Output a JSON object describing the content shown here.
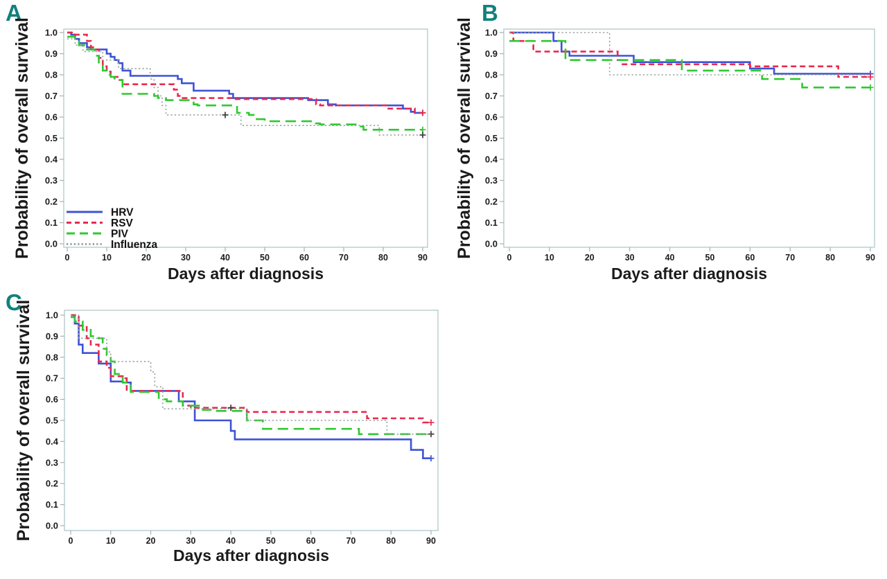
{
  "palette": {
    "panel_letter": "#11817d",
    "axis_text": "#1b1b1b",
    "box_border": "#bccfcf",
    "tick": "#9fb4b4",
    "hrv_blue": "#3d52d5",
    "rsv_red": "#e8294f",
    "piv_green": "#2fc82f",
    "influenza_gray": "#98a2a2",
    "censor_dark": "#3a3a3a"
  },
  "chart_data": [
    {
      "letter": "A",
      "type": "line",
      "subtype": "kaplan-meier-step",
      "xlabel": "Days after diagnosis",
      "ylabel": "Probability of overall survival",
      "xlim": [
        0,
        90
      ],
      "xtick_step": 10,
      "ylim": [
        0.0,
        1.0
      ],
      "ytick_step": 0.1,
      "grid": false,
      "legend_visible": true,
      "legend_position": "inside-bottom-left",
      "series": [
        {
          "name": "HRV",
          "color": "#3d52d5",
          "dash": "solid",
          "points": [
            [
              0,
              1.0
            ],
            [
              1,
              0.99
            ],
            [
              2,
              0.97
            ],
            [
              3,
              0.95
            ],
            [
              5,
              0.93
            ],
            [
              6,
              0.92
            ],
            [
              10,
              0.9
            ],
            [
              11,
              0.885
            ],
            [
              12,
              0.87
            ],
            [
              13,
              0.855
            ],
            [
              14,
              0.82
            ],
            [
              16,
              0.795
            ],
            [
              28,
              0.78
            ],
            [
              29,
              0.76
            ],
            [
              32,
              0.725
            ],
            [
              41,
              0.71
            ],
            [
              42,
              0.69
            ],
            [
              61,
              0.68
            ],
            [
              66,
              0.66
            ],
            [
              68,
              0.655
            ],
            [
              85,
              0.64
            ],
            [
              87,
              0.625
            ],
            [
              88,
              0.62
            ],
            [
              90,
              0.62
            ]
          ],
          "censors": [
            [
              90,
              0.62
            ]
          ]
        },
        {
          "name": "RSV",
          "color": "#e8294f",
          "dash": "dashed",
          "points": [
            [
              0,
              1.0
            ],
            [
              2,
              0.99
            ],
            [
              5,
              0.96
            ],
            [
              6,
              0.93
            ],
            [
              7,
              0.92
            ],
            [
              8,
              0.88
            ],
            [
              9,
              0.84
            ],
            [
              10,
              0.815
            ],
            [
              11,
              0.79
            ],
            [
              13,
              0.775
            ],
            [
              14,
              0.755
            ],
            [
              27,
              0.73
            ],
            [
              28,
              0.7
            ],
            [
              29,
              0.69
            ],
            [
              42,
              0.685
            ],
            [
              63,
              0.66
            ],
            [
              64,
              0.655
            ],
            [
              81,
              0.64
            ],
            [
              88,
              0.62
            ],
            [
              90,
              0.62
            ]
          ],
          "censors": [
            [
              90,
              0.62
            ]
          ]
        },
        {
          "name": "PIV",
          "color": "#2fc82f",
          "dash": "longdash",
          "points": [
            [
              0,
              0.98
            ],
            [
              2,
              0.96
            ],
            [
              3,
              0.94
            ],
            [
              5,
              0.92
            ],
            [
              7,
              0.89
            ],
            [
              8,
              0.85
            ],
            [
              9,
              0.82
            ],
            [
              10,
              0.8
            ],
            [
              11,
              0.79
            ],
            [
              12,
              0.775
            ],
            [
              14,
              0.71
            ],
            [
              22,
              0.7
            ],
            [
              23,
              0.69
            ],
            [
              25,
              0.68
            ],
            [
              32,
              0.66
            ],
            [
              33,
              0.655
            ],
            [
              43,
              0.62
            ],
            [
              46,
              0.61
            ],
            [
              48,
              0.59
            ],
            [
              50,
              0.58
            ],
            [
              63,
              0.57
            ],
            [
              64,
              0.565
            ],
            [
              73,
              0.555
            ],
            [
              75,
              0.54
            ],
            [
              90,
              0.54
            ]
          ],
          "censors": [
            [
              90,
              0.54
            ]
          ]
        },
        {
          "name": "Influenza",
          "color": "#98a2a2",
          "dash": "dotted",
          "points": [
            [
              0,
              0.97
            ],
            [
              2,
              0.94
            ],
            [
              4,
              0.91
            ],
            [
              9,
              0.87
            ],
            [
              13,
              0.83
            ],
            [
              21,
              0.78
            ],
            [
              22,
              0.74
            ],
            [
              23,
              0.7
            ],
            [
              24,
              0.655
            ],
            [
              25,
              0.61
            ],
            [
              44,
              0.56
            ],
            [
              79,
              0.515
            ],
            [
              90,
              0.515
            ]
          ],
          "censors": [
            [
              40,
              0.61,
              "#3a3a3a"
            ],
            [
              90,
              0.515,
              "#3a3a3a"
            ]
          ]
        }
      ]
    },
    {
      "letter": "B",
      "type": "line",
      "subtype": "kaplan-meier-step",
      "xlabel": "Days after diagnosis",
      "ylabel": "Probability of overall survival",
      "xlim": [
        0,
        90
      ],
      "xtick_step": 10,
      "ylim": [
        0.0,
        1.0
      ],
      "ytick_step": 0.1,
      "grid": false,
      "legend_visible": false,
      "series": [
        {
          "name": "HRV",
          "color": "#3d52d5",
          "dash": "solid",
          "points": [
            [
              0,
              1.0
            ],
            [
              11,
              0.96
            ],
            [
              13,
              0.91
            ],
            [
              15,
              0.89
            ],
            [
              31,
              0.86
            ],
            [
              60,
              0.83
            ],
            [
              66,
              0.805
            ],
            [
              90,
              0.805
            ]
          ],
          "censors": [
            [
              90,
              0.805
            ]
          ]
        },
        {
          "name": "RSV",
          "color": "#e8294f",
          "dash": "dashed",
          "points": [
            [
              0,
              1.0
            ],
            [
              1,
              0.96
            ],
            [
              6,
              0.91
            ],
            [
              27,
              0.87
            ],
            [
              28,
              0.85
            ],
            [
              60,
              0.84
            ],
            [
              82,
              0.79
            ],
            [
              90,
              0.79
            ]
          ],
          "censors": [
            [
              90,
              0.79
            ]
          ]
        },
        {
          "name": "PIV",
          "color": "#2fc82f",
          "dash": "longdash",
          "points": [
            [
              0,
              0.96
            ],
            [
              14,
              0.87
            ],
            [
              43,
              0.82
            ],
            [
              63,
              0.78
            ],
            [
              73,
              0.74
            ],
            [
              90,
              0.74
            ]
          ],
          "censors": [
            [
              90,
              0.74
            ]
          ]
        },
        {
          "name": "Influenza",
          "color": "#98a2a2",
          "dash": "dotted",
          "points": [
            [
              0,
              1.0
            ],
            [
              25,
              0.8
            ],
            [
              90,
              0.8
            ]
          ],
          "censors": []
        }
      ]
    },
    {
      "letter": "C",
      "type": "line",
      "subtype": "kaplan-meier-step",
      "xlabel": "Days after diagnosis",
      "ylabel": "Probability of overall survival",
      "xlim": [
        0,
        90
      ],
      "xtick_step": 10,
      "ylim": [
        0.0,
        1.0
      ],
      "ytick_step": 0.1,
      "grid": false,
      "legend_visible": false,
      "series": [
        {
          "name": "HRV",
          "color": "#3d52d5",
          "dash": "solid",
          "points": [
            [
              0,
              1.0
            ],
            [
              1,
              0.96
            ],
            [
              2,
              0.86
            ],
            [
              3,
              0.82
            ],
            [
              7,
              0.77
            ],
            [
              10,
              0.685
            ],
            [
              13,
              0.68
            ],
            [
              15,
              0.64
            ],
            [
              27,
              0.59
            ],
            [
              31,
              0.5
            ],
            [
              40,
              0.45
            ],
            [
              41,
              0.41
            ],
            [
              85,
              0.36
            ],
            [
              88,
              0.32
            ],
            [
              90,
              0.32
            ]
          ],
          "censors": [
            [
              90,
              0.32
            ]
          ]
        },
        {
          "name": "RSV",
          "color": "#e8294f",
          "dash": "dashed",
          "points": [
            [
              0,
              1.0
            ],
            [
              2,
              0.95
            ],
            [
              4,
              0.89
            ],
            [
              5,
              0.86
            ],
            [
              7,
              0.78
            ],
            [
              9,
              0.75
            ],
            [
              10,
              0.71
            ],
            [
              13,
              0.7
            ],
            [
              14,
              0.64
            ],
            [
              28,
              0.57
            ],
            [
              30,
              0.56
            ],
            [
              44,
              0.54
            ],
            [
              74,
              0.51
            ],
            [
              88,
              0.49
            ],
            [
              90,
              0.49
            ]
          ],
          "censors": [
            [
              40,
              0.56,
              "#3a3a3a"
            ],
            [
              90,
              0.49
            ]
          ]
        },
        {
          "name": "PIV",
          "color": "#2fc82f",
          "dash": "longdash",
          "points": [
            [
              0,
              0.99
            ],
            [
              1,
              0.97
            ],
            [
              3,
              0.93
            ],
            [
              5,
              0.9
            ],
            [
              7,
              0.89
            ],
            [
              8,
              0.84
            ],
            [
              9,
              0.81
            ],
            [
              10,
              0.78
            ],
            [
              11,
              0.72
            ],
            [
              13,
              0.68
            ],
            [
              15,
              0.635
            ],
            [
              22,
              0.6
            ],
            [
              24,
              0.59
            ],
            [
              28,
              0.57
            ],
            [
              33,
              0.55
            ],
            [
              35,
              0.545
            ],
            [
              44,
              0.5
            ],
            [
              48,
              0.46
            ],
            [
              72,
              0.435
            ],
            [
              90,
              0.435
            ]
          ],
          "censors": [
            [
              90,
              0.435,
              "#3a3a3a"
            ]
          ]
        },
        {
          "name": "Influenza",
          "color": "#98a2a2",
          "dash": "dotted",
          "points": [
            [
              0,
              1.0
            ],
            [
              2,
              0.89
            ],
            [
              9,
              0.825
            ],
            [
              10,
              0.78
            ],
            [
              20,
              0.73
            ],
            [
              21,
              0.66
            ],
            [
              23,
              0.555
            ],
            [
              44,
              0.5
            ],
            [
              79,
              0.435
            ],
            [
              90,
              0.435
            ]
          ],
          "censors": []
        }
      ]
    }
  ]
}
